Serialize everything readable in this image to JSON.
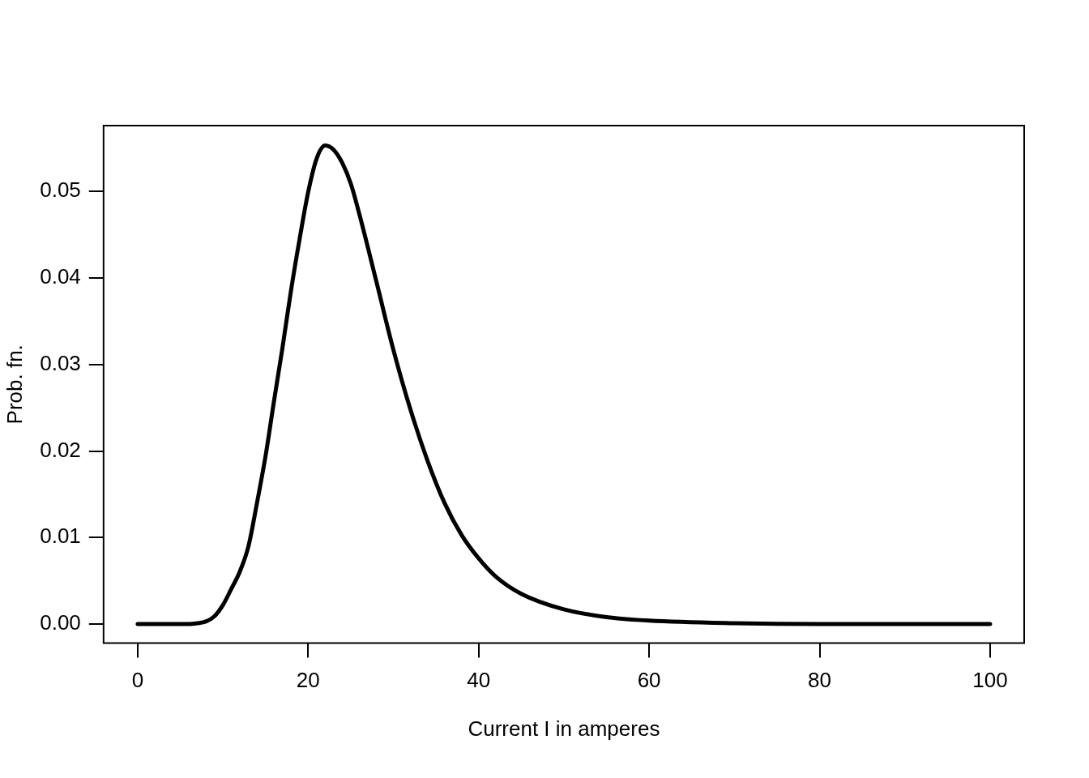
{
  "chart_data": {
    "type": "line",
    "xlabel": "Current I in amperes",
    "ylabel": "Prob. fn.",
    "x": [
      0,
      2,
      4,
      6,
      7,
      8,
      9,
      10,
      11,
      12,
      13,
      14,
      15,
      16,
      17,
      18,
      19,
      20,
      21,
      22,
      23,
      24,
      25,
      26,
      28,
      30,
      32,
      34,
      36,
      38,
      40,
      42,
      45,
      50,
      55,
      60,
      70,
      80,
      90,
      100
    ],
    "series": [
      {
        "color": "#000000",
        "values": [
          0,
          0,
          0,
          0,
          0.0001,
          0.0003,
          0.0009,
          0.0022,
          0.0041,
          0.0061,
          0.009,
          0.014,
          0.0194,
          0.0258,
          0.032,
          0.0386,
          0.0445,
          0.0499,
          0.0538,
          0.0553,
          0.0548,
          0.0533,
          0.0509,
          0.0474,
          0.0396,
          0.0317,
          0.0248,
          0.0189,
          0.014,
          0.0103,
          0.0076,
          0.0055,
          0.0035,
          0.0017,
          0.0008,
          0.0004,
          0.0001,
          0,
          0,
          0
        ]
      }
    ],
    "xlim": [
      -4,
      104
    ],
    "ylim": [
      -0.0022,
      0.0576
    ],
    "xticks": [
      0,
      20,
      40,
      60,
      80,
      100
    ],
    "yticks": [
      {
        "value": 0,
        "label": "0.00"
      },
      {
        "value": 0.01,
        "label": "0.01"
      },
      {
        "value": 0.02,
        "label": "0.02"
      },
      {
        "value": 0.03,
        "label": "0.03"
      },
      {
        "value": 0.04,
        "label": "0.04"
      },
      {
        "value": 0.05,
        "label": "0.05"
      }
    ],
    "grid": false,
    "legend": false,
    "marker": "none",
    "line_style": "solid"
  }
}
